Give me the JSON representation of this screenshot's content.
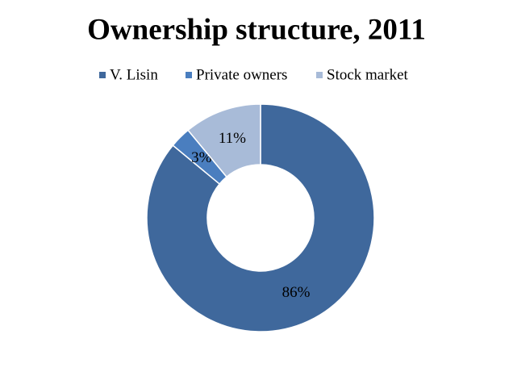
{
  "chart_data": {
    "type": "donut",
    "title": "Ownership structure, 2011",
    "categories": [
      "V. Lisin",
      "Private owners",
      "Stock market"
    ],
    "values": [
      86,
      3,
      11
    ],
    "value_labels": [
      "86%",
      "3%",
      "11%"
    ],
    "colors": [
      "#3f689c",
      "#4a7ebf",
      "#a8bbd8"
    ],
    "legend": "top"
  }
}
